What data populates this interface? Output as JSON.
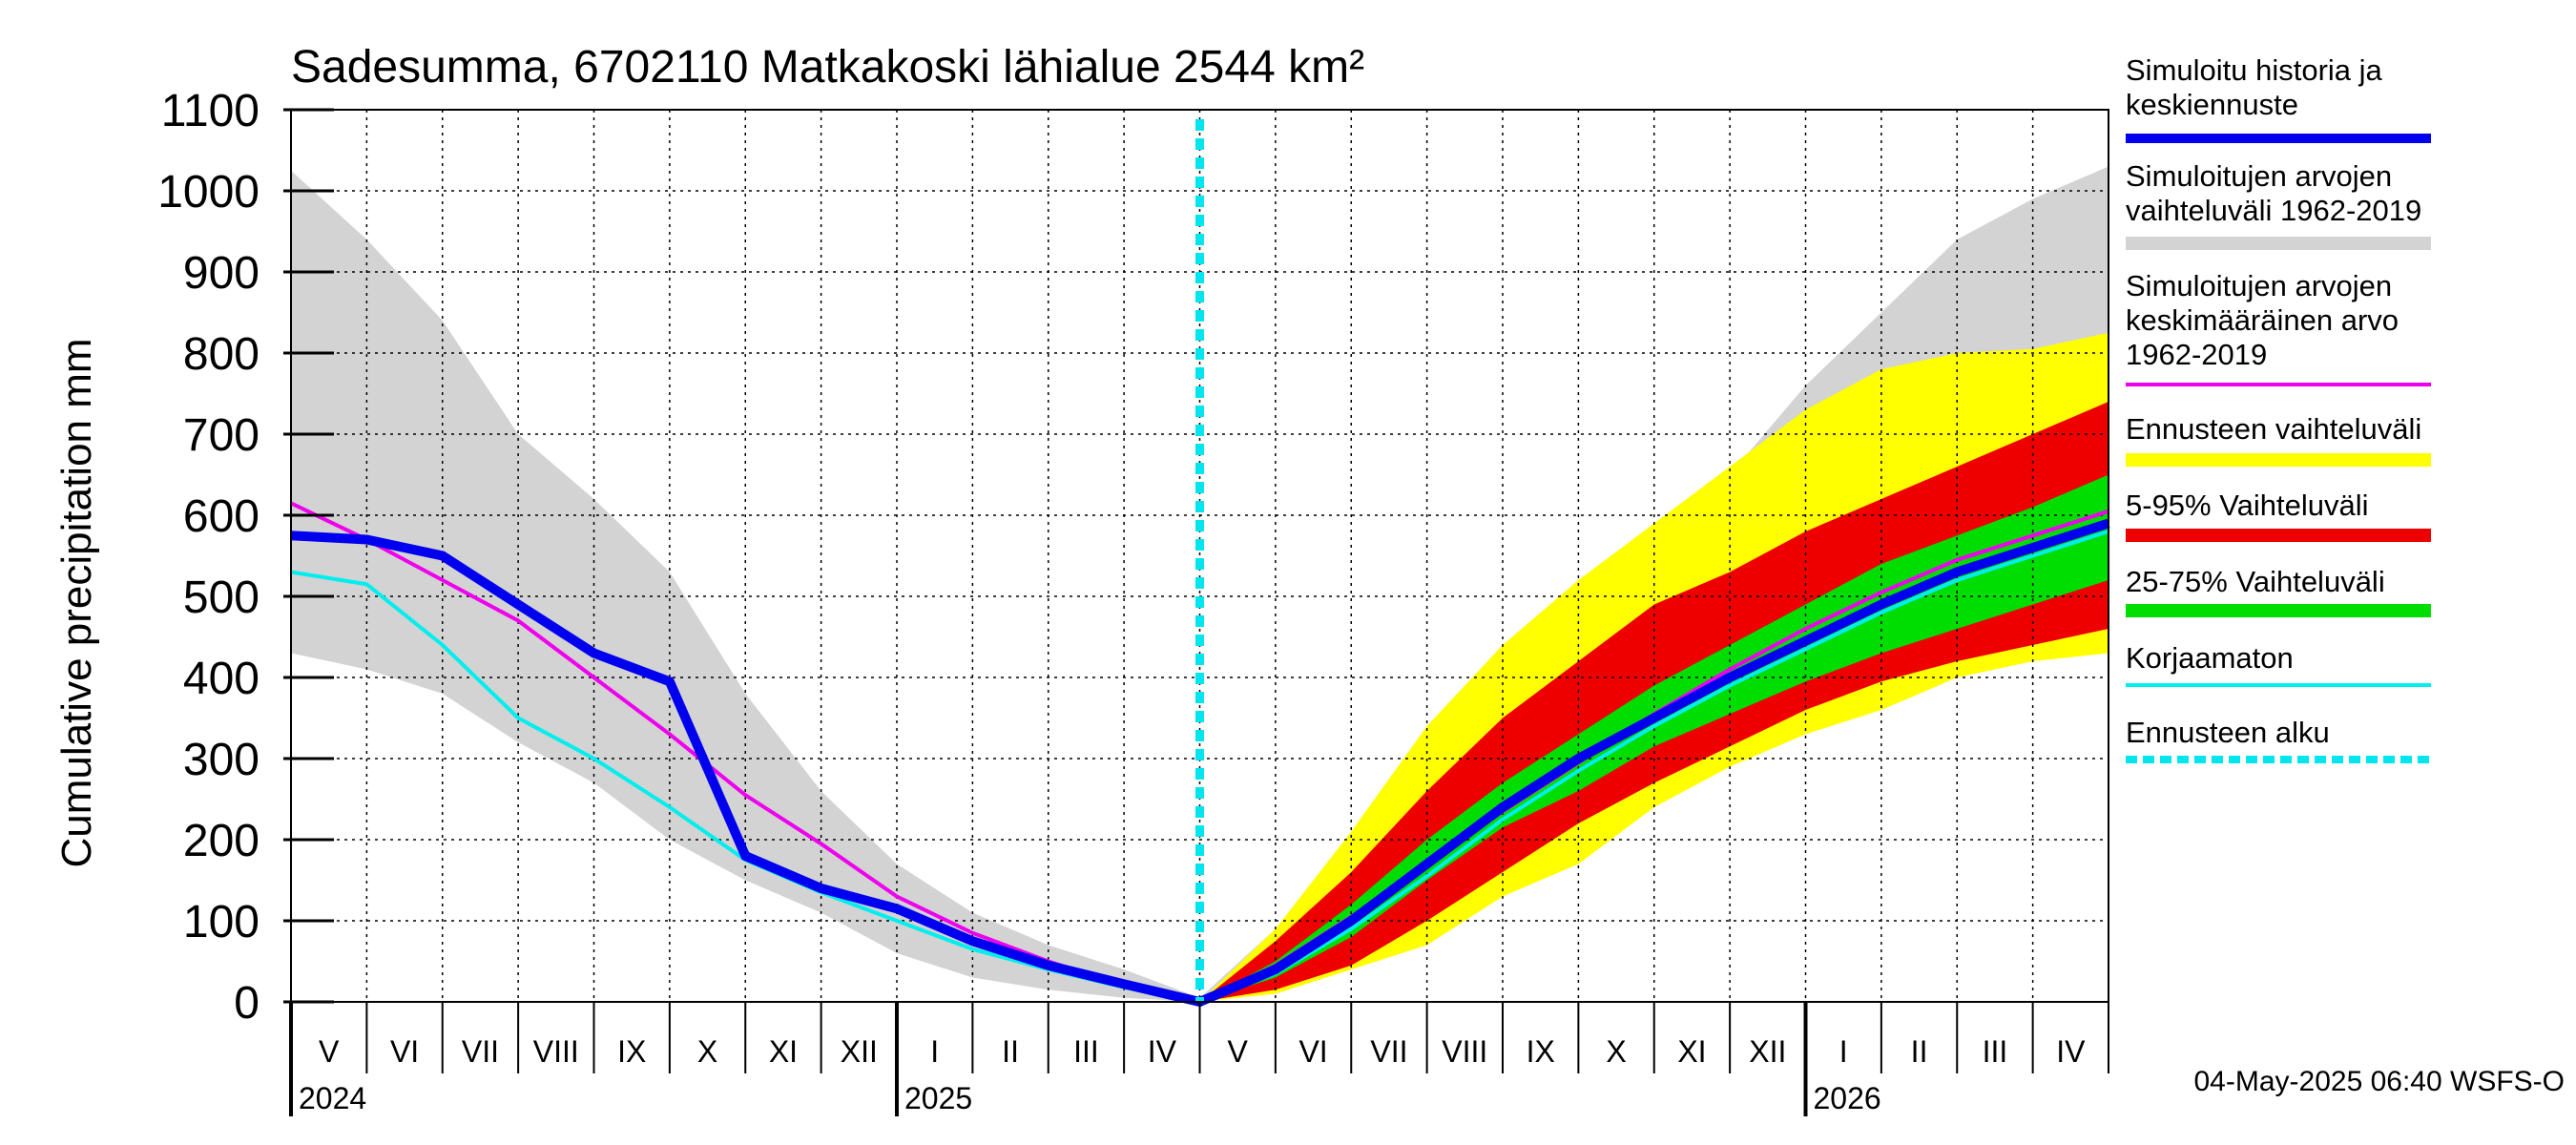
{
  "chart_data": {
    "type": "area",
    "title": "Sadesumma, 6702110 Matkakoski lähialue 2544 km²",
    "ylabel": "Cumulative precipitation   mm",
    "ylim": [
      0,
      1100
    ],
    "yticks": [
      "0",
      "100",
      "200",
      "300",
      "400",
      "500",
      "600",
      "700",
      "800",
      "900",
      "1000",
      "1100"
    ],
    "months": [
      "V",
      "VI",
      "VII",
      "VIII",
      "IX",
      "X",
      "XI",
      "XII",
      "I",
      "II",
      "III",
      "IV",
      "V",
      "VI",
      "VII",
      "VIII",
      "IX",
      "X",
      "XI",
      "XII",
      "I",
      "II",
      "III",
      "IV"
    ],
    "years": [
      {
        "label": "2024",
        "month_index": 0
      },
      {
        "label": "2025",
        "month_index": 8
      },
      {
        "label": "2026",
        "month_index": 20
      }
    ],
    "forecast_start_month": 12,
    "footer": "04-May-2025 06:40 WSFS-O",
    "x_months": [
      0,
      1,
      2,
      3,
      4,
      5,
      6,
      7,
      8,
      9,
      10,
      11,
      12,
      13,
      14,
      15,
      16,
      17,
      18,
      19,
      20,
      21,
      22,
      23,
      24
    ],
    "series": [
      {
        "name": "hist_range_upper",
        "values": [
          1025,
          940,
          840,
          700,
          620,
          530,
          380,
          260,
          170,
          110,
          70,
          40,
          5,
          90,
          190,
          300,
          420,
          520,
          580,
          650,
          760,
          850,
          940,
          990,
          1030
        ]
      },
      {
        "name": "hist_range_lower",
        "values": [
          430,
          410,
          380,
          320,
          270,
          200,
          150,
          110,
          60,
          30,
          15,
          5,
          0,
          20,
          40,
          80,
          140,
          200,
          260,
          310,
          340,
          370,
          400,
          420,
          440
        ]
      },
      {
        "name": "mean_1962_2019",
        "values": [
          615,
          570,
          520,
          470,
          400,
          330,
          255,
          195,
          130,
          85,
          50,
          20,
          0,
          45,
          105,
          170,
          235,
          295,
          355,
          410,
          460,
          505,
          545,
          575,
          605
        ]
      },
      {
        "name": "sim_history_mean",
        "values": [
          575,
          570,
          550,
          490,
          430,
          395,
          180,
          140,
          115,
          75,
          45,
          22,
          0,
          40,
          100,
          170,
          240,
          300,
          350,
          400,
          445,
          490,
          530,
          560,
          590
        ]
      },
      {
        "name": "uncorrected",
        "values": [
          530,
          515,
          440,
          350,
          300,
          240,
          175,
          135,
          100,
          65,
          40,
          18,
          0,
          35,
          90,
          155,
          225,
          285,
          340,
          390,
          435,
          480,
          520,
          550,
          580
        ]
      },
      {
        "name": "forecast_range_upper",
        "values": [
          null,
          null,
          null,
          null,
          null,
          null,
          null,
          null,
          null,
          null,
          null,
          null,
          0,
          90,
          210,
          340,
          440,
          520,
          590,
          660,
          730,
          780,
          800,
          805,
          825
        ]
      },
      {
        "name": "forecast_range_lower",
        "values": [
          null,
          null,
          null,
          null,
          null,
          null,
          null,
          null,
          null,
          null,
          null,
          null,
          0,
          10,
          40,
          70,
          130,
          170,
          240,
          290,
          330,
          360,
          400,
          420,
          430
        ]
      },
      {
        "name": "p5_95_upper",
        "values": [
          null,
          null,
          null,
          null,
          null,
          null,
          null,
          null,
          null,
          null,
          null,
          null,
          0,
          75,
          160,
          260,
          350,
          420,
          490,
          530,
          580,
          620,
          660,
          700,
          740
        ]
      },
      {
        "name": "p5_95_lower",
        "values": [
          null,
          null,
          null,
          null,
          null,
          null,
          null,
          null,
          null,
          null,
          null,
          null,
          0,
          15,
          45,
          100,
          160,
          220,
          270,
          315,
          360,
          395,
          420,
          440,
          460
        ]
      },
      {
        "name": "p25_75_upper",
        "values": [
          null,
          null,
          null,
          null,
          null,
          null,
          null,
          null,
          null,
          null,
          null,
          null,
          0,
          50,
          120,
          200,
          270,
          330,
          390,
          440,
          490,
          540,
          575,
          610,
          650
        ]
      },
      {
        "name": "p25_75_lower",
        "values": [
          null,
          null,
          null,
          null,
          null,
          null,
          null,
          null,
          null,
          null,
          null,
          null,
          0,
          30,
          80,
          150,
          215,
          260,
          315,
          355,
          395,
          430,
          460,
          490,
          520
        ]
      }
    ],
    "legend": [
      {
        "label_lines": [
          "Simuloitu historia ja",
          "keskiennuste"
        ],
        "color": "#0000ee",
        "style": "thick"
      },
      {
        "label_lines": [
          "Simuloitujen arvojen",
          "vaihteluväli 1962-2019"
        ],
        "color": "#d3d3d3",
        "style": "band"
      },
      {
        "label_lines": [
          "Simuloitujen arvojen",
          "keskimääräinen arvo",
          "   1962-2019"
        ],
        "color": "#ee00ee",
        "style": "line"
      },
      {
        "label_lines": [
          "Ennusteen vaihteluväli"
        ],
        "color": "#ffff00",
        "style": "band"
      },
      {
        "label_lines": [
          "5-95% Vaihteluväli"
        ],
        "color": "#ee0000",
        "style": "band"
      },
      {
        "label_lines": [
          "25-75% Vaihteluväli"
        ],
        "color": "#00dd00",
        "style": "band"
      },
      {
        "label_lines": [
          "Korjaamaton"
        ],
        "color": "#00eeee",
        "style": "line"
      },
      {
        "label_lines": [
          "Ennusteen alku"
        ],
        "color": "#00e5ee",
        "style": "dashed"
      }
    ]
  }
}
